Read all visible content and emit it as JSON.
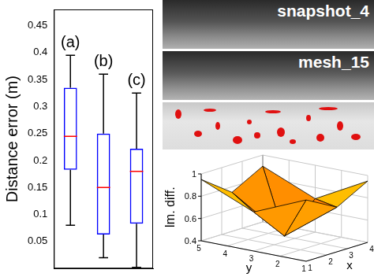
{
  "chart_data": [
    {
      "type": "boxplot",
      "y_label": "Distance error (m)",
      "categories": [
        "(a)",
        "(b)",
        "(c)"
      ],
      "min": [
        0.08,
        0.02,
        0.002
      ],
      "q1": [
        0.183,
        0.063,
        0.083
      ],
      "median": [
        0.245,
        0.15,
        0.18
      ],
      "q3": [
        0.335,
        0.25,
        0.222
      ],
      "max": [
        0.395,
        0.36,
        0.325
      ],
      "color": "#0000ff",
      "ylim": [
        0,
        0.48
      ],
      "yticks": [
        0.05,
        0.1,
        0.15,
        0.2,
        0.25,
        0.3,
        0.35,
        0.4,
        0.45
      ],
      "grid": false,
      "tick_labels": "y"
    },
    {
      "type": "surface",
      "x_label": "x",
      "y_label": "y",
      "z_label": "Im. diff.",
      "x": [
        1,
        2.5,
        4
      ],
      "y": [
        1,
        3,
        5
      ],
      "z": [
        [
          0.95,
          0.8,
          0.95
        ],
        [
          0.75,
          0.45,
          0.7
        ],
        [
          0.95,
          0.75,
          0.9
        ]
      ],
      "xlim": [
        1,
        4
      ],
      "ylim": [
        1,
        5
      ],
      "zlim": [
        0.4,
        1
      ],
      "xticks": [
        1,
        2,
        3,
        4
      ],
      "yticks": [
        1,
        2,
        3,
        4,
        5
      ],
      "zticks": [
        0.4,
        0.6,
        0.8,
        1
      ]
    }
  ],
  "images": [
    {
      "label": "snapshot_4"
    },
    {
      "label": "mesh_15"
    }
  ]
}
